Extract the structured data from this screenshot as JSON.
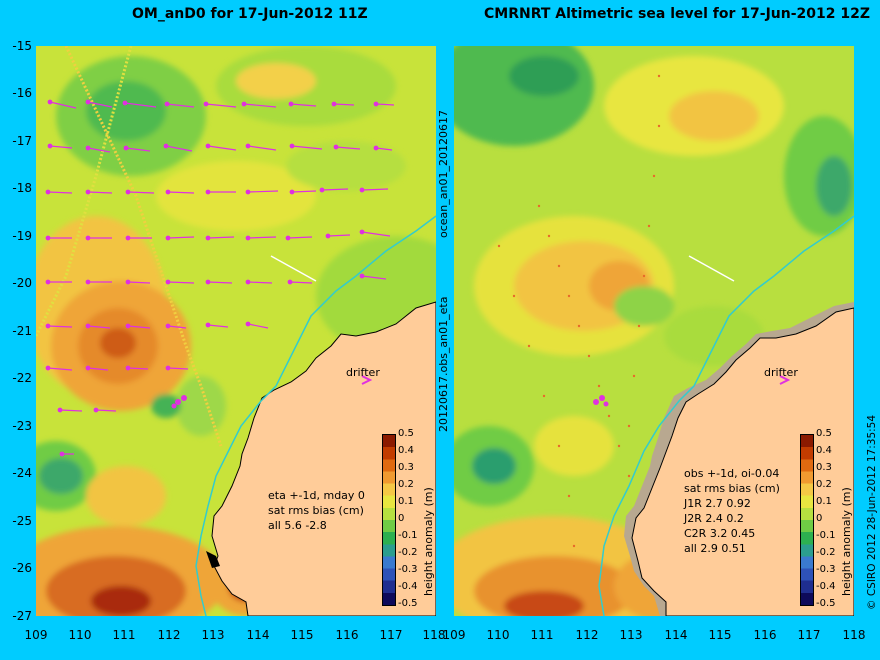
{
  "left_panel": {
    "title": "OM_anD0 for 17-Jun-2012 11Z",
    "y_labels": [
      "-15",
      "-16",
      "-17",
      "-18",
      "-19",
      "-20",
      "-21",
      "-22",
      "-23",
      "-24",
      "-25",
      "-26",
      "-27"
    ],
    "x_labels": [
      "109",
      "110",
      "111",
      "112",
      "113",
      "114",
      "115",
      "116",
      "117",
      "118"
    ],
    "annotation": [
      "eta +-1d, mday 0",
      "sat rms bias (cm)",
      "all 5.6 -2.8"
    ],
    "drifter_label": "drifter",
    "colorbar_title": "height anomaly (m)"
  },
  "right_panel": {
    "title": "CMRNRT Altimetric sea level  for 17-Jun-2012 12Z",
    "x_labels": [
      "109",
      "110",
      "111",
      "112",
      "113",
      "114",
      "115",
      "116",
      "117",
      "118"
    ],
    "annotation": [
      "obs +-1d, oi-0.04",
      "sat rms bias (cm)",
      "J1R  2.7 0.92",
      "J2R  2.4 0.2",
      "C2R  3.2 0.45",
      "all 2.9 0.51"
    ],
    "drifter_label": "drifter",
    "colorbar_title": "height anomaly (m)"
  },
  "middle_vertical_labels": [
    "ocean_an01_20120617",
    "20120617.obs_an01_eta"
  ],
  "credit": "© CSIRO 2012   28-Jun-2012 17:35:54",
  "colorbar": {
    "ticks": [
      "0.5",
      "0.4",
      "0.3",
      "0.2",
      "0.1",
      "0",
      "-0.1",
      "-0.2",
      "-0.3",
      "-0.4",
      "-0.5"
    ],
    "colors": [
      "#8B1A00",
      "#C23C00",
      "#E06A10",
      "#F09A30",
      "#F5C845",
      "#E8E640",
      "#B6E040",
      "#6FCC45",
      "#2DB050",
      "#2B9E8E",
      "#3A7ACF",
      "#2E52B8",
      "#1F2E90",
      "#0E0A5A"
    ]
  },
  "colors": {
    "background": "#00CCFF",
    "land": "#FFCC99",
    "vectors": "#E030E0",
    "coastline_contour": "#33CCCC"
  }
}
